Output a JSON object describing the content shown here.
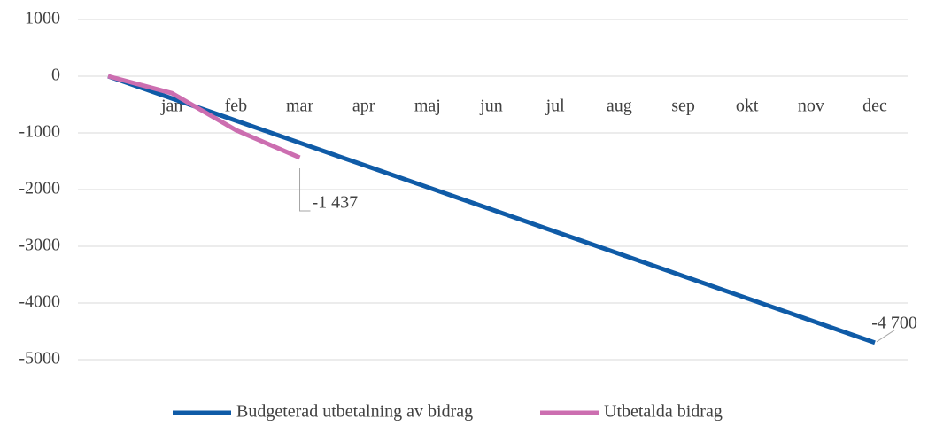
{
  "chart_data": {
    "type": "line",
    "categories": [
      null,
      "jan",
      "feb",
      "mar",
      "apr",
      "maj",
      "jun",
      "jul",
      "aug",
      "sep",
      "okt",
      "nov",
      "dec"
    ],
    "series": [
      {
        "name": "Budgeterad utbetalning av bidrag",
        "color": "#0f5ba7",
        "values": [
          0,
          -392,
          -783,
          -1175,
          -1567,
          -1958,
          -2350,
          -2742,
          -3133,
          -3525,
          -3917,
          -4308,
          -4700
        ],
        "value_labels": [
          null,
          null,
          null,
          null,
          null,
          null,
          null,
          null,
          null,
          null,
          null,
          null,
          "-4 700"
        ]
      },
      {
        "name": "Utbetalda bidrag",
        "color": "#cc6eb0",
        "values": [
          0,
          -300,
          -950,
          -1437,
          null,
          null,
          null,
          null,
          null,
          null,
          null,
          null,
          null
        ],
        "value_labels": [
          null,
          null,
          null,
          "-1 437",
          null,
          null,
          null,
          null,
          null,
          null,
          null,
          null,
          null
        ]
      }
    ],
    "ylim": [
      -5000,
      1000
    ],
    "yticks": [
      1000,
      0,
      -1000,
      -2000,
      -3000,
      -4000,
      -5000
    ],
    "grid": true,
    "legend": "bottom"
  }
}
